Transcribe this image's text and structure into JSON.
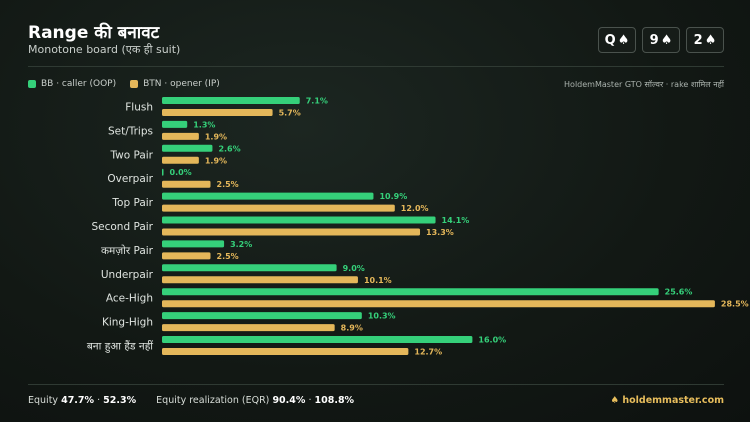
{
  "header": {
    "title": "Range की बनावट",
    "subtitle": "Monotone board (एक ही suit)",
    "board": [
      {
        "rank": "Q",
        "suit": "♠"
      },
      {
        "rank": "9",
        "suit": "♠"
      },
      {
        "rank": "2",
        "suit": "♠"
      }
    ]
  },
  "legend": {
    "bb_label": "BB · caller (OOP)",
    "btn_label": "BTN · opener (IP)",
    "source": "HoldemMaster GTO सॉल्वर · rake शामिल नहीं"
  },
  "colors": {
    "bb": "#35d07a",
    "btn": "#e4b75a"
  },
  "chart_data": {
    "type": "bar",
    "orientation": "horizontal",
    "categories": [
      "Flush",
      "Set/Trips",
      "Two Pair",
      "Overpair",
      "Top Pair",
      "Second Pair",
      "कमज़ोर Pair",
      "Underpair",
      "Ace-High",
      "King-High",
      "बना हुआ हैंड नहीं"
    ],
    "series": [
      {
        "name": "BB · caller (OOP)",
        "values": [
          7.1,
          1.3,
          2.6,
          0.0,
          10.9,
          14.1,
          3.2,
          9.0,
          25.6,
          10.3,
          16.0
        ]
      },
      {
        "name": "BTN · opener (IP)",
        "values": [
          5.7,
          1.9,
          1.9,
          2.5,
          12.0,
          13.3,
          2.5,
          10.1,
          28.5,
          8.9,
          12.7
        ]
      }
    ],
    "value_suffix": "%",
    "xlim": [
      0,
      30
    ],
    "grid": false,
    "legend_position": "top-left"
  },
  "footer": {
    "equity_label": "Equity",
    "equity_bb": "47.7%",
    "equity_sep": "·",
    "equity_btn": "52.3%",
    "eqr_label": "Equity realization (EQR)",
    "eqr_bb": "90.4%",
    "eqr_sep": "·",
    "eqr_btn": "108.8%",
    "brand": "holdemmaster.com"
  }
}
